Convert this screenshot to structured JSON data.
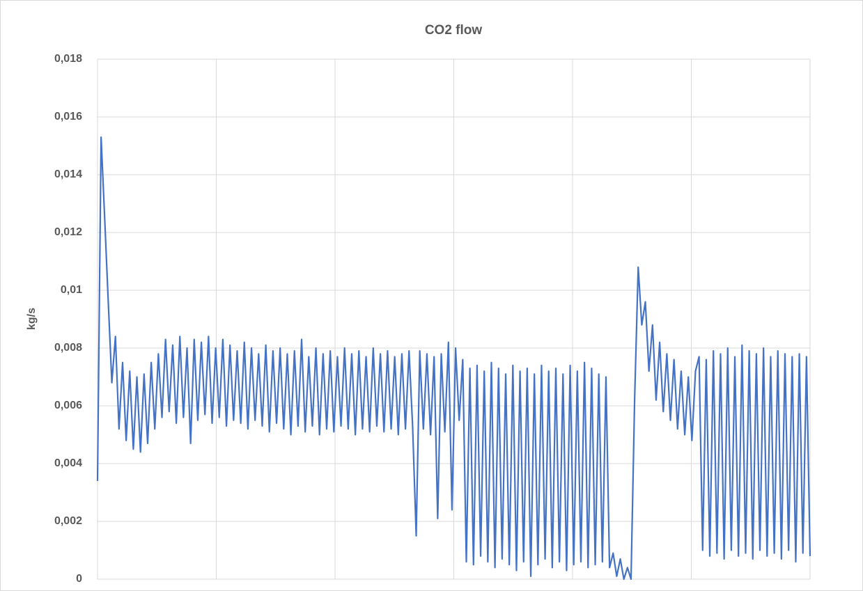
{
  "chart_data": {
    "type": "line",
    "title": "CO2 flow",
    "y_label": "kg/s",
    "series": [
      {
        "name": "CO2 flow",
        "color": "#4472c4",
        "values": [
          0.0034,
          0.0153,
          0.0125,
          0.0096,
          0.0068,
          0.0084,
          0.0052,
          0.0075,
          0.0048,
          0.0072,
          0.0045,
          0.007,
          0.0044,
          0.0071,
          0.0047,
          0.0075,
          0.0052,
          0.0078,
          0.0056,
          0.0083,
          0.0058,
          0.0081,
          0.0054,
          0.0084,
          0.0056,
          0.008,
          0.0047,
          0.0083,
          0.0055,
          0.0082,
          0.0057,
          0.0084,
          0.0054,
          0.008,
          0.0056,
          0.0083,
          0.0053,
          0.0081,
          0.0055,
          0.0079,
          0.0054,
          0.0082,
          0.0052,
          0.008,
          0.0055,
          0.0078,
          0.0053,
          0.0081,
          0.0051,
          0.0079,
          0.0054,
          0.008,
          0.0052,
          0.0078,
          0.005,
          0.0079,
          0.0053,
          0.0083,
          0.0051,
          0.0077,
          0.0053,
          0.008,
          0.005,
          0.0078,
          0.0052,
          0.0079,
          0.0051,
          0.0077,
          0.0053,
          0.008,
          0.0052,
          0.0078,
          0.005,
          0.0079,
          0.0052,
          0.0077,
          0.0051,
          0.008,
          0.0053,
          0.0078,
          0.0051,
          0.0079,
          0.0052,
          0.0077,
          0.005,
          0.0078,
          0.0052,
          0.0079,
          0.0053,
          0.0015,
          0.0079,
          0.0052,
          0.0078,
          0.005,
          0.0077,
          0.0021,
          0.0078,
          0.0051,
          0.0082,
          0.0024,
          0.008,
          0.0055,
          0.0076,
          0.0006,
          0.0073,
          0.0005,
          0.0074,
          0.0008,
          0.0072,
          0.0006,
          0.0075,
          0.0004,
          0.0073,
          0.0007,
          0.0071,
          0.0005,
          0.0074,
          0.0003,
          0.0072,
          0.0006,
          0.0073,
          0.0001,
          0.0071,
          0.0005,
          0.0074,
          0.0007,
          0.0072,
          0.0004,
          0.0073,
          0.0006,
          0.0071,
          0.0003,
          0.0074,
          0.0005,
          0.0072,
          0.0006,
          0.0075,
          0.0004,
          0.0073,
          0.0005,
          0.0071,
          0.0006,
          0.007,
          0.0004,
          0.0009,
          0.0001,
          0.0007,
          0.0,
          0.0004,
          0.0,
          0.0062,
          0.0108,
          0.0088,
          0.0096,
          0.0072,
          0.0088,
          0.0062,
          0.0082,
          0.0058,
          0.0078,
          0.0055,
          0.0076,
          0.0052,
          0.0072,
          0.005,
          0.007,
          0.0048,
          0.0072,
          0.0077,
          0.001,
          0.0076,
          0.0008,
          0.0079,
          0.0009,
          0.0078,
          0.0007,
          0.008,
          0.001,
          0.0077,
          0.0008,
          0.0081,
          0.0009,
          0.0079,
          0.0007,
          0.0078,
          0.001,
          0.008,
          0.0008,
          0.0077,
          0.0009,
          0.0079,
          0.0007,
          0.0078,
          0.001,
          0.0077,
          0.0006,
          0.0078,
          0.0009,
          0.0077,
          0.0008
        ]
      }
    ],
    "ylim": [
      0,
      0.018
    ],
    "yticks": [
      0,
      {
        "value": 0.002,
        "label": "0,002"
      },
      {
        "value": 0.004,
        "label": "0,004"
      },
      {
        "value": 0.006,
        "label": "0,006"
      },
      {
        "value": 0.008,
        "label": "0,008"
      },
      {
        "value": 0.01,
        "label": "0,01"
      },
      {
        "value": 0.012,
        "label": "0,012"
      },
      {
        "value": 0.014,
        "label": "0,014"
      },
      {
        "value": 0.016,
        "label": "0,016"
      },
      {
        "value": 0.018,
        "label": "0,018"
      }
    ],
    "grid": true
  }
}
